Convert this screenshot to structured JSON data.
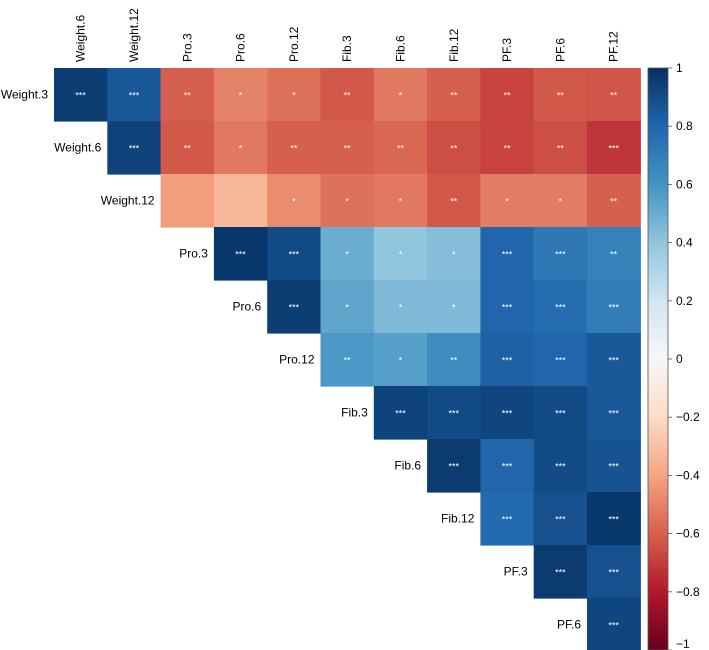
{
  "chart_data": {
    "type": "heatmap",
    "layout": "upper-triangle",
    "variables": [
      "Weight.3",
      "Weight.6",
      "Weight.12",
      "Pro.3",
      "Pro.6",
      "Pro.12",
      "Fib.3",
      "Fib.6",
      "Fib.12",
      "PF.3",
      "PF.6",
      "PF.12"
    ],
    "row_labels": [
      "Weight.3",
      "Weight.6",
      "Weight.12",
      "Pro.3",
      "Pro.6",
      "Pro.12",
      "Fib.3",
      "Fib.6",
      "Fib.12",
      "PF.3",
      "PF.6"
    ],
    "column_labels": [
      "Weight.6",
      "Weight.12",
      "Pro.3",
      "Pro.6",
      "Pro.12",
      "Fib.3",
      "Fib.6",
      "Fib.12",
      "PF.3",
      "PF.6",
      "PF.12"
    ],
    "values": [
      [
        0.95,
        0.85,
        -0.6,
        -0.5,
        -0.55,
        -0.62,
        -0.53,
        -0.6,
        -0.68,
        -0.62,
        -0.63
      ],
      [
        0.93,
        -0.62,
        -0.53,
        -0.6,
        -0.6,
        -0.58,
        -0.65,
        -0.68,
        -0.65,
        -0.72
      ],
      [
        -0.42,
        -0.33,
        -0.47,
        -0.55,
        -0.53,
        -0.62,
        -0.52,
        -0.52,
        -0.6
      ],
      [
        0.97,
        0.9,
        0.5,
        0.4,
        0.43,
        0.8,
        0.72,
        0.68
      ],
      [
        0.95,
        0.53,
        0.45,
        0.45,
        0.8,
        0.77,
        0.7
      ],
      [
        0.58,
        0.55,
        0.63,
        0.82,
        0.8,
        0.85
      ],
      [
        0.93,
        0.9,
        0.92,
        0.9,
        0.85
      ],
      [
        0.96,
        0.8,
        0.9,
        0.87
      ],
      [
        0.78,
        0.88,
        0.97
      ],
      [
        0.96,
        0.88
      ],
      [
        0.92
      ]
    ],
    "significance": [
      [
        "***",
        "***",
        "**",
        "*",
        "*",
        "**",
        "*",
        "**",
        "**",
        "**",
        "**"
      ],
      [
        "***",
        "**",
        "*",
        "**",
        "**",
        "**",
        "**",
        "**",
        "**",
        "***"
      ],
      [
        "",
        "",
        "*",
        "*",
        "*",
        "**",
        "*",
        "*",
        "**"
      ],
      [
        "***",
        "***",
        "*",
        "*",
        "*",
        "***",
        "***",
        "**"
      ],
      [
        "***",
        "*",
        "*",
        "*",
        "***",
        "***",
        "***"
      ],
      [
        "**",
        "*",
        "**",
        "***",
        "***",
        "***"
      ],
      [
        "***",
        "***",
        "***",
        "***",
        "***"
      ],
      [
        "***",
        "***",
        "***",
        "***"
      ],
      [
        "***",
        "***",
        "***"
      ],
      [
        "***",
        "***"
      ],
      [
        "***"
      ]
    ],
    "colorbar": {
      "range": [
        -1,
        1
      ],
      "ticks": [
        "1",
        "0.8",
        "0.6",
        "0.4",
        "0.2",
        "0",
        "−0.2",
        "−0.4",
        "−0.6",
        "−0.8",
        "−1"
      ],
      "tick_values": [
        1,
        0.8,
        0.6,
        0.4,
        0.2,
        0,
        -0.2,
        -0.4,
        -0.6,
        -0.8,
        -1
      ],
      "colors": [
        "#67001F",
        "#B2182B",
        "#D6604D",
        "#F4A582",
        "#FDDBC7",
        "#F7F7F7",
        "#D1E5F0",
        "#92C5DE",
        "#4393C3",
        "#2166AC",
        "#053061"
      ]
    }
  }
}
